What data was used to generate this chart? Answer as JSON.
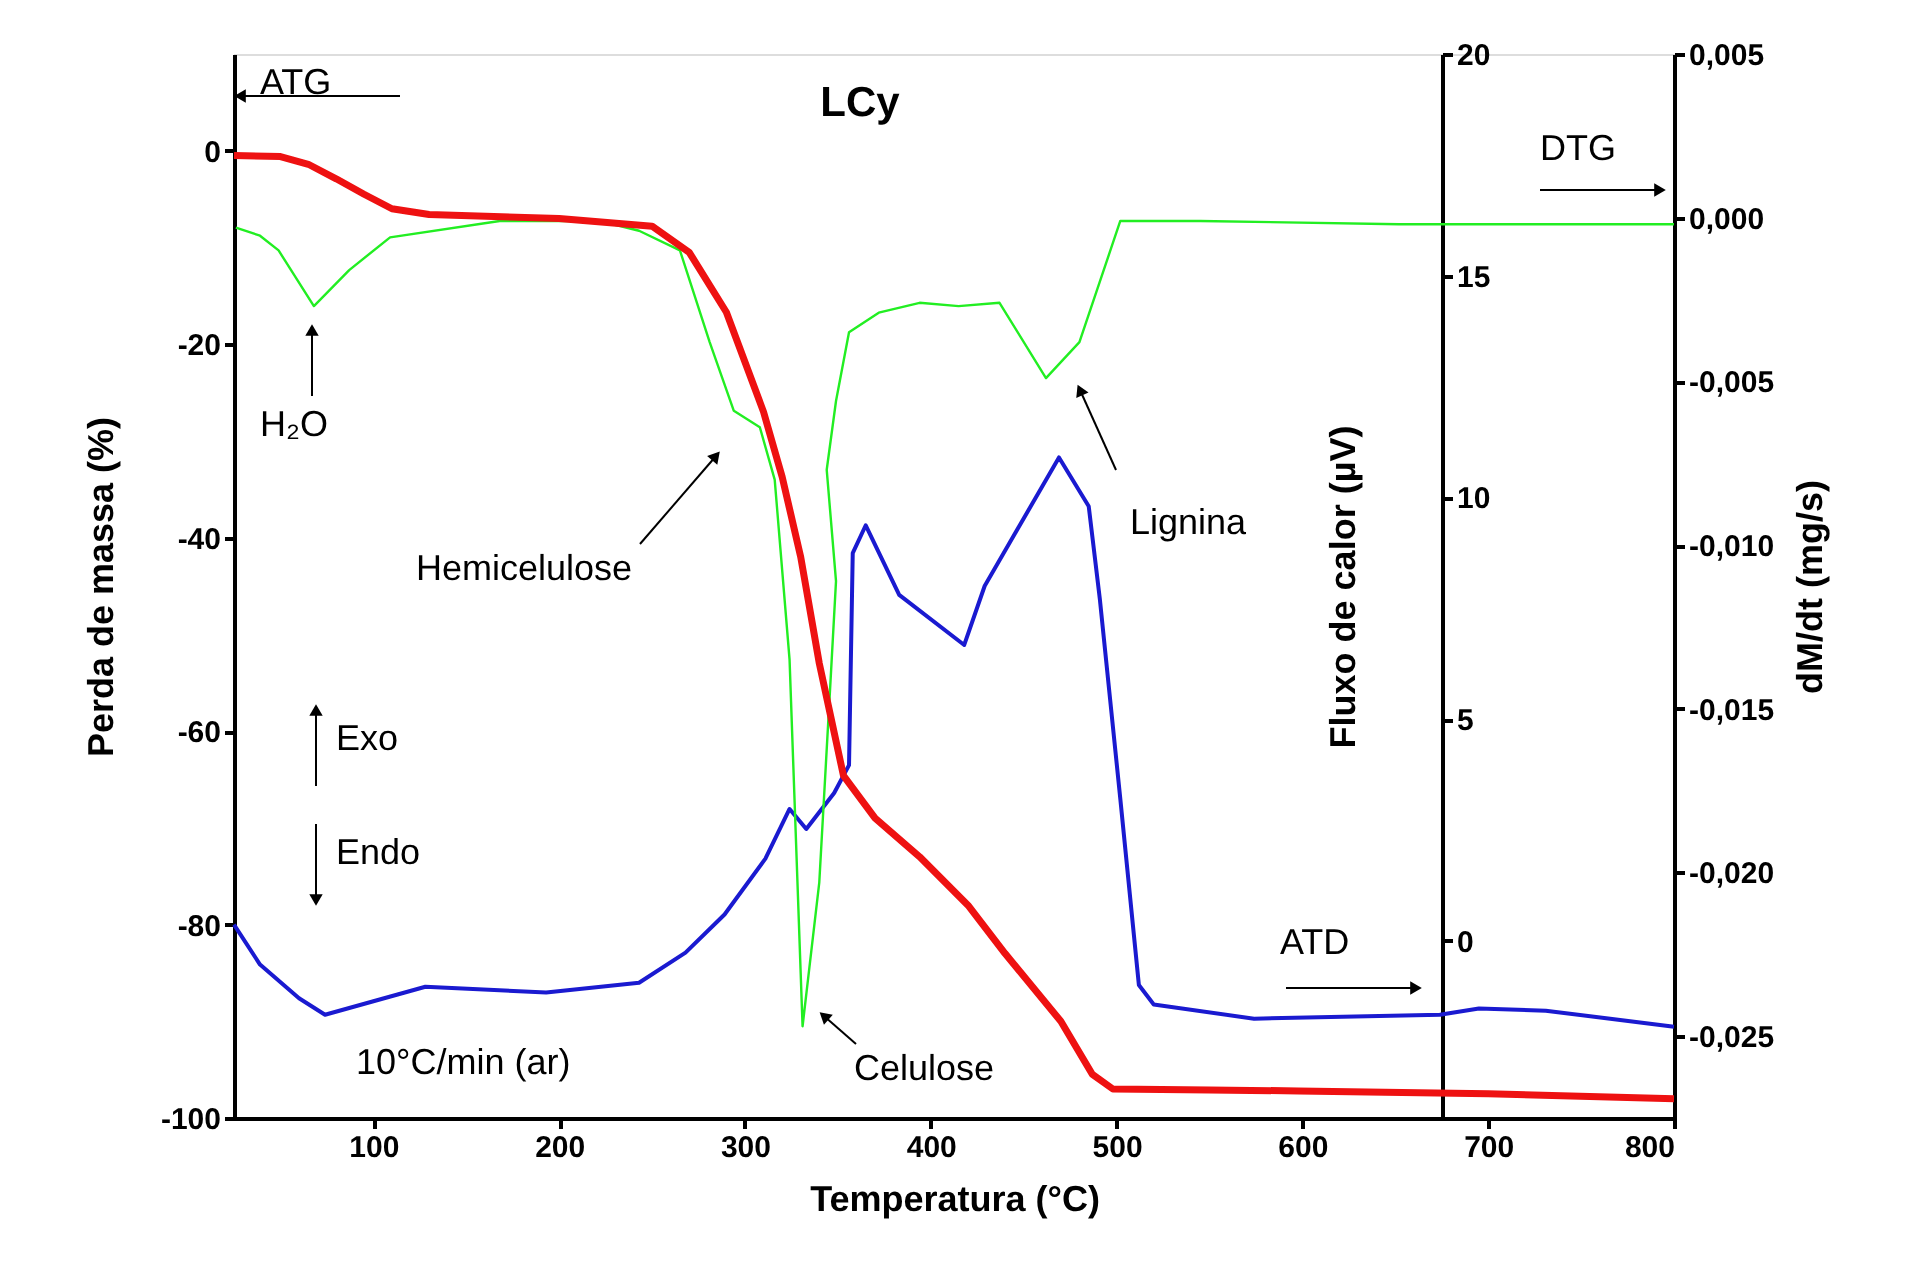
{
  "chart_data": {
    "type": "line",
    "title": "LCy",
    "xlabel": "Temperatura (°C)",
    "ylabel": "Perda de massa (%)",
    "y2label": "Fluxo de calor (µV)",
    "y3label": "dM/dt (mg/s)",
    "xlim": [
      25,
      800
    ],
    "xticks": [
      100,
      200,
      300,
      400,
      500,
      600,
      700,
      800
    ],
    "ylim": [
      -100,
      10
    ],
    "yticks": [
      -100,
      -80,
      -60,
      -40,
      -20,
      0
    ],
    "y2lim": [
      -4,
      20
    ],
    "y2ticks": [
      0,
      5,
      10,
      15,
      20
    ],
    "y3lim": [
      -0.0275,
      0.005
    ],
    "y3ticks": [
      {
        "value": -0.025,
        "label": "-0,025"
      },
      {
        "value": -0.02,
        "label": "-0,020"
      },
      {
        "value": -0.015,
        "label": "-0,015"
      },
      {
        "value": -0.01,
        "label": "-0,010"
      },
      {
        "value": -0.005,
        "label": "-0,005"
      },
      {
        "value": 0,
        "label": "0,000"
      },
      {
        "value": 0.005,
        "label": "0,005"
      }
    ],
    "grid": false,
    "marker": "none",
    "line_style": "solid",
    "series": [
      {
        "name": "ATG",
        "color": "#ee1111",
        "axis": "y",
        "x": [
          25,
          50,
          65,
          80,
          95,
          110,
          130,
          200,
          250,
          270,
          290,
          310,
          320,
          330,
          340,
          353,
          370,
          394,
          420,
          440,
          470,
          487,
          498,
          550,
          598,
          700,
          800
        ],
        "values": [
          -0.5,
          -0.6,
          -1.4,
          -2.9,
          -4.5,
          -6,
          -6.6,
          -7,
          -7.8,
          -10.5,
          -16.7,
          -27,
          -33.7,
          -42,
          -53,
          -64.6,
          -69,
          -73,
          -78,
          -83,
          -90,
          -95.5,
          -97,
          -97.1,
          -97.2,
          -97.5,
          -98
        ]
      },
      {
        "name": "DTG",
        "color": "#22ee22",
        "axis": "y3",
        "x": [
          26,
          39,
          49,
          68,
          87,
          109,
          168,
          222,
          243,
          265,
          281,
          294,
          308,
          316,
          324,
          331,
          340,
          346,
          349,
          344,
          349,
          356,
          372,
          394,
          415,
          437,
          462,
          480,
          502,
          545,
          652,
          800
        ],
        "values": [
          -0.0003,
          -0.00055,
          -0.001,
          -0.0027,
          -0.0016,
          -0.0006,
          -0.0001,
          -0.0001,
          -0.0004,
          -0.001,
          -0.0038,
          -0.0059,
          -0.0064,
          -0.008,
          -0.0135,
          -0.0247,
          -0.0203,
          -0.0142,
          -0.0111,
          -0.0077,
          -0.0056,
          -0.0035,
          -0.0029,
          -0.0026,
          -0.0027,
          -0.0026,
          -0.0049,
          -0.0038,
          -0.0001,
          -0.0001,
          -0.0002,
          -0.0002
        ]
      },
      {
        "name": "ATD",
        "color": "#1a1ad0",
        "axis": "y2",
        "x": [
          25,
          39,
          60,
          74,
          128,
          193,
          243,
          268,
          289,
          311,
          324,
          333,
          348,
          356,
          358,
          365,
          383,
          418,
          429,
          469,
          485,
          491,
          502,
          512,
          520,
          574,
          674,
          695,
          731,
          800
        ],
        "values": [
          0.36,
          -0.54,
          -1.3,
          -1.67,
          -1.04,
          -1.17,
          -0.95,
          -0.27,
          0.59,
          1.85,
          2.97,
          2.52,
          3.33,
          3.96,
          8.74,
          9.37,
          7.8,
          6.67,
          8.0,
          10.9,
          9.8,
          7.7,
          3.2,
          -1.0,
          -1.44,
          -1.76,
          -1.67,
          -1.53,
          -1.58,
          -1.94
        ]
      }
    ],
    "annotations": [
      "H₂O",
      "Hemicelulose",
      "Celulose",
      "Lignina",
      "Exo",
      "Endo",
      "10°C/min (ar)"
    ]
  }
}
